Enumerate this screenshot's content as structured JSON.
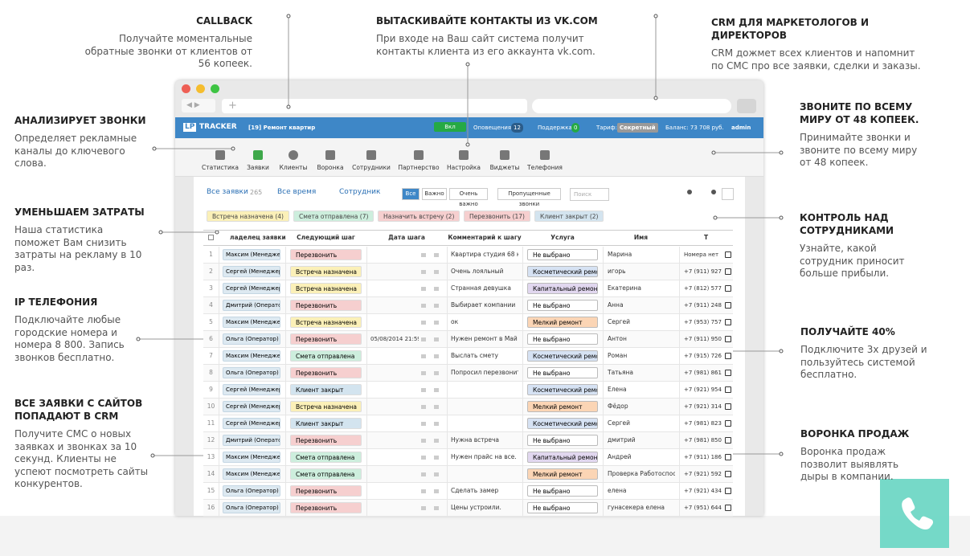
{
  "callouts": [
    {
      "title": "CALLBACK",
      "text": "Получайте моментальные обратные звонки от клиентов от 56 копеек."
    },
    {
      "title": "ВЫТАСКИВАЙТЕ КОНТАКТЫ ИЗ VK.COM",
      "text": "При входе на Ваш сайт система получит контакты клиента из его аккаунта vk.com."
    },
    {
      "title": "CRM ДЛЯ МАРКЕТОЛОГОВ И ДИРЕКТОРОВ",
      "text": "CRM дожмет всех клиентов и напомнит по СМС про все заявки, сделки и заказы."
    },
    {
      "title": "АНАЛИЗИРУЕТ ЗВОНКИ",
      "text": "Определяет рекламные каналы до ключевого слова."
    },
    {
      "title": "УМЕНЬШАЕМ ЗАТРАТЫ",
      "text": "Наша статистика поможет Вам снизить затраты на рекламу в 10 раз."
    },
    {
      "title": "IP ТЕЛЕФОНИЯ",
      "text": "Подключайте любые городские номера и номера 8 800.  Запись звонков бесплатно."
    },
    {
      "title": "ВСЕ ЗАЯВКИ  С САЙТОВ ПОПАДАЮТ В CRM",
      "text": "Получите СМС о новых заявках и звонках за 10 секунд. Клиенты не успеют  посмотреть сайты конкурентов."
    },
    {
      "title": "ЗВОНИТЕ ПО ВСЕМУ МИРУ ОТ 48 КОПЕЕК.",
      "text": "Принимайте звонки и звоните по всему миру от 48 копеек."
    },
    {
      "title": "КОНТРОЛЬ НАД СОТРУДНИКАМИ",
      "text": "Узнайте, какой сотрудник приносит больше прибыли."
    },
    {
      "title": "ПОЛУЧАЙТЕ 40%",
      "text": "Подключите 3х друзей и пользуйтесь системой бесплатно."
    },
    {
      "title": "ВОРОНКА ПРОДАЖ",
      "text": "Воронка продаж позволит выявлять дыры в компании."
    }
  ],
  "app": {
    "logo": "LP",
    "logo_text": "TRACKER",
    "project": "[19] Ремонт квартир",
    "toggle": "Вкл",
    "notifications": "Оповещения",
    "notifications_count": "12",
    "support": "Поддержка",
    "support_count": "0",
    "tariff": "Тариф:",
    "tariff_value": "Секретный",
    "balance": "Баланс: 73 708 руб.",
    "user": "admin",
    "nav": [
      "Статистика",
      "Заявки",
      "Клиенты",
      "Воронка",
      "Сотрудники",
      "Партнерство",
      "Настройка",
      "Виджеты",
      "Телефония"
    ],
    "filters": {
      "all": "Все заявки",
      "count": "265",
      "time": "Все время",
      "staff": "Сотрудник",
      "buttons": [
        "Все",
        "Важно",
        "Очень важно"
      ],
      "missed": "Пропущенные звонки",
      "search": "Поиск"
    },
    "tags": [
      {
        "text": "Встреча назначена (4)",
        "color": "#fbf0b8"
      },
      {
        "text": "Смета отправлена (7)",
        "color": "#cdeedd"
      },
      {
        "text": "Назначить встречу (2)",
        "color": "#f6cfcf"
      },
      {
        "text": "Перезвонить (17)",
        "color": "#f6cfcf"
      },
      {
        "text": "Клиент закрыт (2)",
        "color": "#d3e4ef"
      }
    ],
    "table": {
      "headers": [
        "ладелец заявки",
        "Следующий шаг",
        "Дата шага",
        "Комментарий к шагу",
        "Услуга",
        "Имя",
        "Т"
      ],
      "rows": [
        {
          "num": "1",
          "owner": "Максим (Менеджер)",
          "step": {
            "text": "Перезвонить",
            "color": "#f6cfcf"
          },
          "date": null,
          "comment": "Квартира студия 68 ка",
          "service": {
            "text": "Не выбрано",
            "color": "#ffffff"
          },
          "name": "Марина",
          "phone": "Номера нет"
        },
        {
          "num": "2",
          "owner": "Сергей (Менеджер)",
          "step": {
            "text": "Встреча назначена",
            "color": "#fbf0b8"
          },
          "date": null,
          "comment": "Очень лояльный",
          "service": {
            "text": "Косметический ремс",
            "color": "#d6e2f3"
          },
          "name": "игорь",
          "phone": "+7 (911) 927"
        },
        {
          "num": "3",
          "owner": "Сергей (Менеджер)",
          "step": {
            "text": "Встреча назначена",
            "color": "#fbf0b8"
          },
          "date": null,
          "comment": "Странная девушка",
          "service": {
            "text": "Капитальный ремонт",
            "color": "#e1d7ef"
          },
          "name": "Екатерина",
          "phone": "+7 (812) 577"
        },
        {
          "num": "4",
          "owner": "Дмитрий (Оператор)",
          "step": {
            "text": "Перезвонить",
            "color": "#f6cfcf"
          },
          "date": null,
          "comment": "Выбирает компании",
          "service": {
            "text": "Не выбрано",
            "color": "#ffffff"
          },
          "name": "Анна",
          "phone": "+7 (911) 248"
        },
        {
          "num": "5",
          "owner": "Максим (Менеджер)",
          "step": {
            "text": "Встреча назначена",
            "color": "#fbf0b8"
          },
          "date": null,
          "comment": "ок",
          "service": {
            "text": "Мелкий ремонт",
            "color": "#fbd5b5"
          },
          "name": "Сергей",
          "phone": "+7 (953) 757"
        },
        {
          "num": "6",
          "owner": "Ольга (Оператор)",
          "step": {
            "text": "Перезвонить",
            "color": "#f6cfcf"
          },
          "date": "05/08/2014 21:59",
          "comment": "Нужен ремонт в Май",
          "service": {
            "text": "Не выбрано",
            "color": "#ffffff"
          },
          "name": "Антон",
          "phone": "+7 (911) 950"
        },
        {
          "num": "7",
          "owner": "Максим (Менеджер)",
          "step": {
            "text": "Смета отправлена",
            "color": "#cdeedd"
          },
          "date": null,
          "comment": "Выслать смету",
          "service": {
            "text": "Косметический ремс",
            "color": "#d6e2f3"
          },
          "name": "Роман",
          "phone": "+7 (915) 726"
        },
        {
          "num": "8",
          "owner": "Ольга (Оператор)",
          "step": {
            "text": "Перезвонить",
            "color": "#f6cfcf"
          },
          "date": null,
          "comment": "Попросил перезвонить",
          "service": {
            "text": "Не выбрано",
            "color": "#ffffff"
          },
          "name": "Татьяна",
          "phone": "+7 (981) 861"
        },
        {
          "num": "9",
          "owner": "Сергей (Менеджер)",
          "step": {
            "text": "Клиент закрыт",
            "color": "#d3e4ef"
          },
          "date": null,
          "comment": null,
          "service": {
            "text": "Косметический ремс",
            "color": "#d6e2f3"
          },
          "name": "Елена",
          "phone": "+7 (921) 954"
        },
        {
          "num": "10",
          "owner": "Сергей (Менеджер)",
          "step": {
            "text": "Встреча назначена",
            "color": "#fbf0b8"
          },
          "date": null,
          "comment": null,
          "service": {
            "text": "Мелкий ремонт",
            "color": "#fbd5b5"
          },
          "name": "Фёдор",
          "phone": "+7 (921) 314"
        },
        {
          "num": "11",
          "owner": "Сергей (Менеджер)",
          "step": {
            "text": "Клиент закрыт",
            "color": "#d3e4ef"
          },
          "date": null,
          "comment": null,
          "service": {
            "text": "Косметический ремс",
            "color": "#d6e2f3"
          },
          "name": "Сергей",
          "phone": "+7 (981) 823"
        },
        {
          "num": "12",
          "owner": "Дмитрий (Оператор)",
          "step": {
            "text": "Перезвонить",
            "color": "#f6cfcf"
          },
          "date": null,
          "comment": "Нужна встреча",
          "service": {
            "text": "Не выбрано",
            "color": "#ffffff"
          },
          "name": "дмитрий",
          "phone": "+7 (981) 850"
        },
        {
          "num": "13",
          "owner": "Максим (Менеджер)",
          "step": {
            "text": "Смета отправлена",
            "color": "#cdeedd"
          },
          "date": null,
          "comment": "Нужен прайс на все.",
          "service": {
            "text": "Капитальный ремонт",
            "color": "#e1d7ef"
          },
          "name": "Андрей",
          "phone": "+7 (911) 186"
        },
        {
          "num": "14",
          "owner": "Максим (Менеджер)",
          "step": {
            "text": "Смета отправлена",
            "color": "#cdeedd"
          },
          "date": null,
          "comment": null,
          "service": {
            "text": "Мелкий ремонт",
            "color": "#fbd5b5"
          },
          "name": "Проверка Работоспособ",
          "phone": "+7 (921) 592"
        },
        {
          "num": "15",
          "owner": "Ольга (Оператор)",
          "step": {
            "text": "Перезвонить",
            "color": "#f6cfcf"
          },
          "date": null,
          "comment": "Сделать замер",
          "service": {
            "text": "Не выбрано",
            "color": "#ffffff"
          },
          "name": "елена",
          "phone": "+7 (921) 434"
        },
        {
          "num": "16",
          "owner": "Ольга (Оператор)",
          "step": {
            "text": "Перезвонить",
            "color": "#f6cfcf"
          },
          "date": null,
          "comment": "Цены устроили.",
          "service": {
            "text": "Не выбрано",
            "color": "#ffffff"
          },
          "name": "гунасекера  елена",
          "phone": "+7 (951) 644"
        }
      ]
    }
  }
}
